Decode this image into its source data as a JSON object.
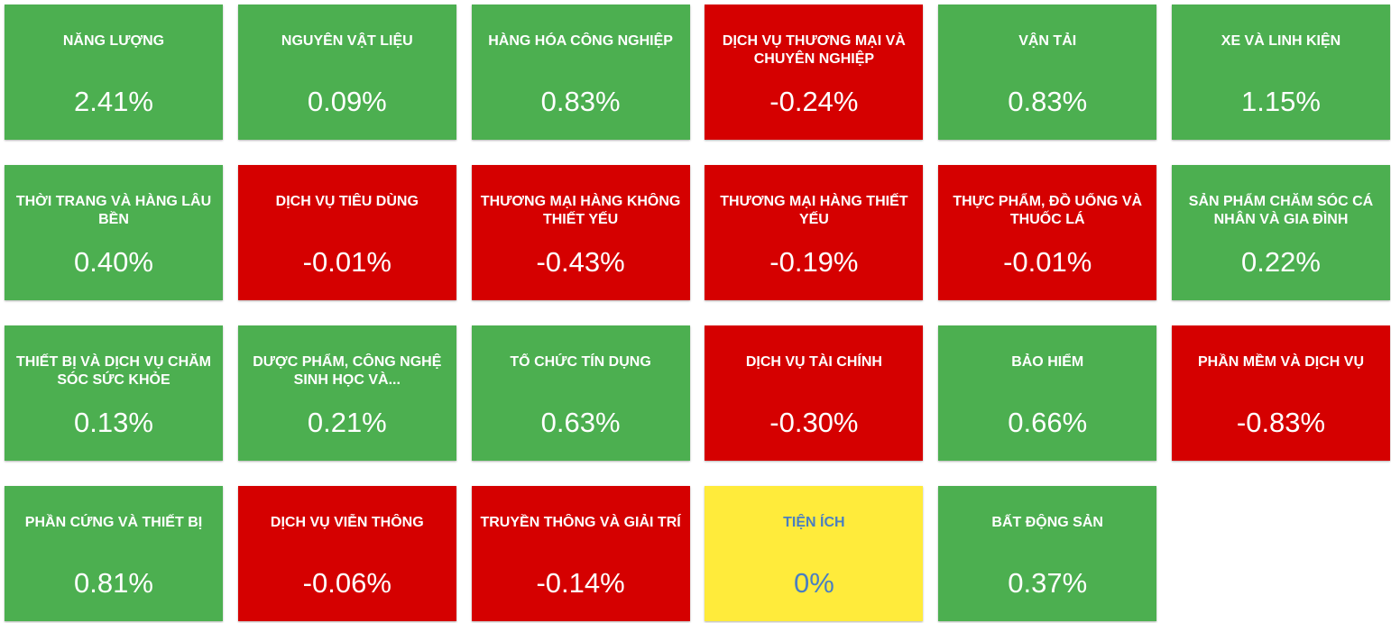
{
  "tiles": [
    {
      "name": "NĂNG LƯỢNG",
      "change": "2.41%",
      "color": "#4caf50"
    },
    {
      "name": "NGUYÊN VẬT LIỆU",
      "change": "0.09%",
      "color": "#4caf50"
    },
    {
      "name": "HÀNG HÓA CÔNG NGHIỆP",
      "change": "0.83%",
      "color": "#4caf50"
    },
    {
      "name": "DỊCH VỤ THƯƠNG MẠI VÀ CHUYÊN NGHIỆP",
      "change": "-0.24%",
      "color": "#d50000"
    },
    {
      "name": "VẬN TẢI",
      "change": "0.83%",
      "color": "#4caf50"
    },
    {
      "name": "XE VÀ LINH KIỆN",
      "change": "1.15%",
      "color": "#4caf50"
    },
    {
      "name": "THỜI TRANG VÀ HÀNG LÂU BỀN",
      "change": "0.40%",
      "color": "#4caf50"
    },
    {
      "name": "DỊCH VỤ TIÊU DÙNG",
      "change": "-0.01%",
      "color": "#d50000"
    },
    {
      "name": "THƯƠNG MẠI HÀNG KHÔNG THIẾT YẾU",
      "change": "-0.43%",
      "color": "#d50000"
    },
    {
      "name": "THƯƠNG MẠI HÀNG THIẾT YẾU",
      "change": "-0.19%",
      "color": "#d50000"
    },
    {
      "name": "THỰC PHẨM, ĐỒ UỐNG VÀ THUỐC LÁ",
      "change": "-0.01%",
      "color": "#d50000"
    },
    {
      "name": "SẢN PHẨM CHĂM SÓC CÁ NHÂN VÀ GIA ĐÌNH",
      "change": "0.22%",
      "color": "#4caf50"
    },
    {
      "name": "THIẾT BỊ VÀ DỊCH VỤ CHĂM SÓC SỨC KHỎE",
      "change": "0.13%",
      "color": "#4caf50"
    },
    {
      "name": "DƯỢC PHẨM, CÔNG NGHỆ SINH HỌC VÀ...",
      "change": "0.21%",
      "color": "#4caf50"
    },
    {
      "name": "TỔ CHỨC TÍN DỤNG",
      "change": "0.63%",
      "color": "#4caf50"
    },
    {
      "name": "DỊCH VỤ TÀI CHÍNH",
      "change": "-0.30%",
      "color": "#d50000"
    },
    {
      "name": "BẢO HIỂM",
      "change": "0.66%",
      "color": "#4caf50"
    },
    {
      "name": "PHẦN MỀM VÀ DỊCH VỤ",
      "change": "-0.83%",
      "color": "#d50000"
    },
    {
      "name": "PHẦN CỨNG VÀ THIẾT BỊ",
      "change": "0.81%",
      "color": "#4caf50"
    },
    {
      "name": "DỊCH VỤ VIỄN THÔNG",
      "change": "-0.06%",
      "color": "#d50000"
    },
    {
      "name": "TRUYỀN THÔNG VÀ GIẢI TRÍ",
      "change": "-0.14%",
      "color": "#d50000"
    },
    {
      "name": "TIỆN ÍCH",
      "change": "0%",
      "color": "#ffeb3b"
    },
    {
      "name": "BẤT ĐỘNG SẢN",
      "change": "0.37%",
      "color": "#4caf50"
    }
  ]
}
